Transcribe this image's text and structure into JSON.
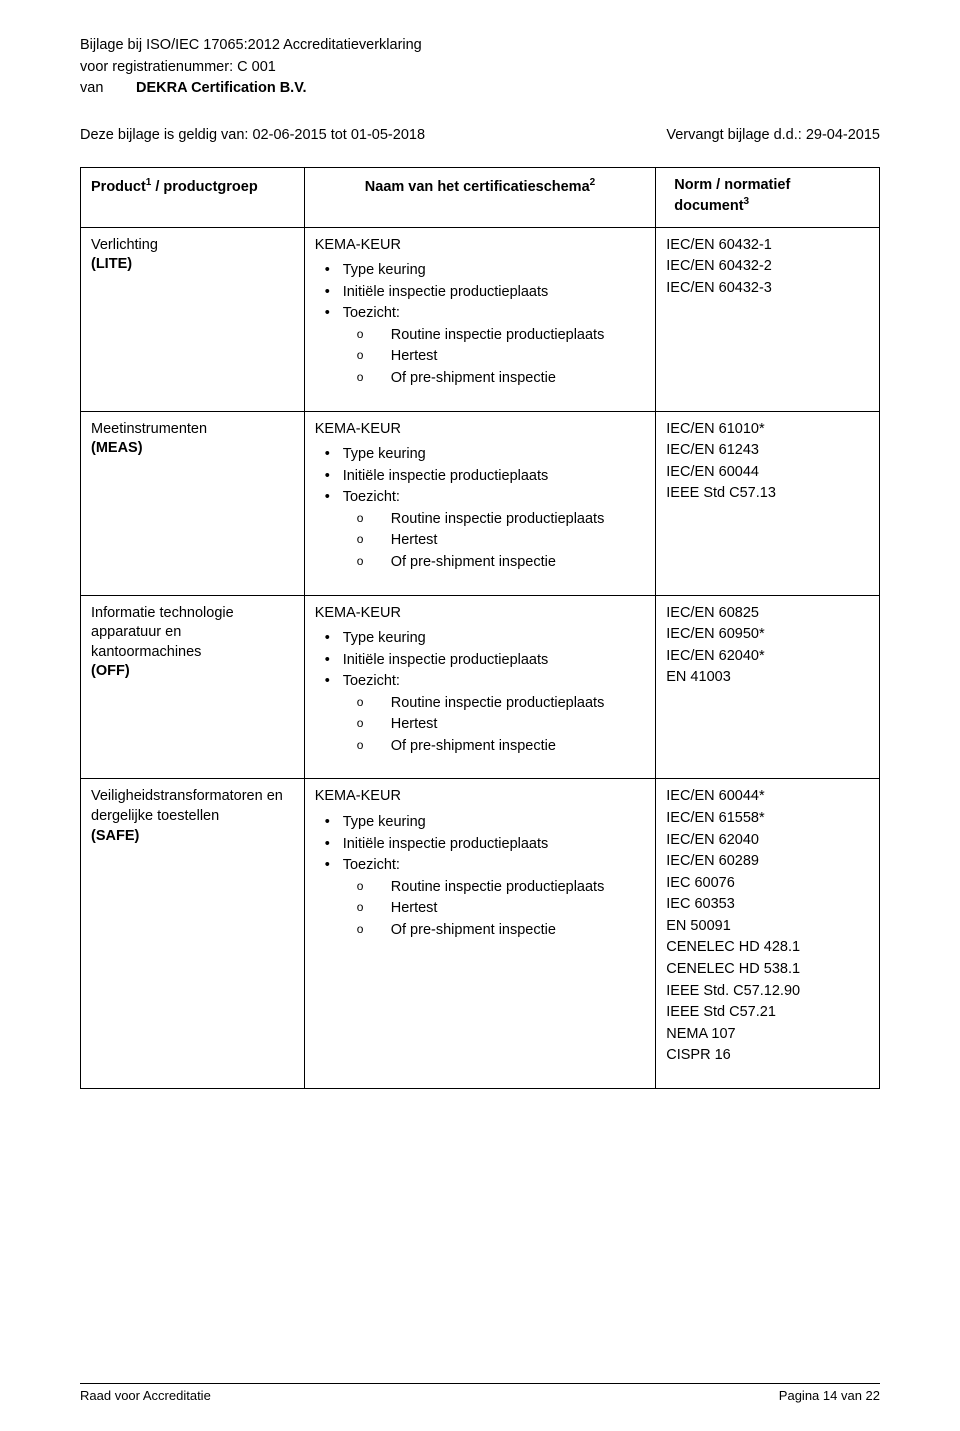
{
  "header": {
    "line1": "Bijlage bij ISO/IEC 17065:2012 Accreditatieverklaring",
    "line2": "voor registratienummer: C 001",
    "van_label": "van",
    "org": "DEKRA Certification B.V.",
    "validity": "Deze bijlage is geldig van: 02-06-2015 tot 01-05-2018",
    "replaces": "Vervangt bijlage d.d.: 29-04-2015"
  },
  "table": {
    "col1_header_a": "Product",
    "col1_sup": "1",
    "col1_header_b": " / productgroep",
    "col2_header": "Naam van het certificatieschema",
    "col2_sup": "2",
    "col3_header_a": "Norm / normatief",
    "col3_header_b": "document",
    "col3_sup": "3"
  },
  "scheme_block": {
    "name": "KEMA-KEUR",
    "b1": "Type keuring",
    "b2": "Initiële inspectie productieplaats",
    "b3": "Toezicht:",
    "s1": "Routine inspectie productieplaats",
    "s2": "Hertest",
    "s3": "Of pre-shipment inspectie"
  },
  "rows": [
    {
      "product_a": "Verlichting",
      "product_b": "(LITE)",
      "norms": [
        "IEC/EN 60432-1",
        "IEC/EN 60432-2",
        "IEC/EN 60432-3"
      ]
    },
    {
      "product_a": "Meetinstrumenten",
      "product_b": "(MEAS)",
      "norms": [
        "IEC/EN 61010*",
        "IEC/EN 61243",
        "IEC/EN 60044",
        "IEEE Std C57.13"
      ]
    },
    {
      "product_a": "Informatie technologie apparatuur en kantoormachines",
      "product_b": "(OFF)",
      "norms": [
        "IEC/EN 60825",
        "IEC/EN 60950*",
        "IEC/EN 62040*",
        "EN 41003"
      ]
    },
    {
      "product_a": "Veiligheidstransformatoren en dergelijke toestellen",
      "product_b": "(SAFE)",
      "norms": [
        "IEC/EN 60044*",
        "IEC/EN 61558*",
        "IEC/EN 62040",
        "IEC/EN 60289",
        "IEC 60076",
        "IEC 60353",
        "EN 50091",
        "CENELEC HD 428.1",
        "CENELEC HD 538.1",
        "IEEE Std. C57.12.90",
        "IEEE Std C57.21",
        "NEMA 107",
        "CISPR 16"
      ]
    }
  ],
  "footer": {
    "left": "Raad voor Accreditatie",
    "right": "Pagina 14 van 22"
  }
}
